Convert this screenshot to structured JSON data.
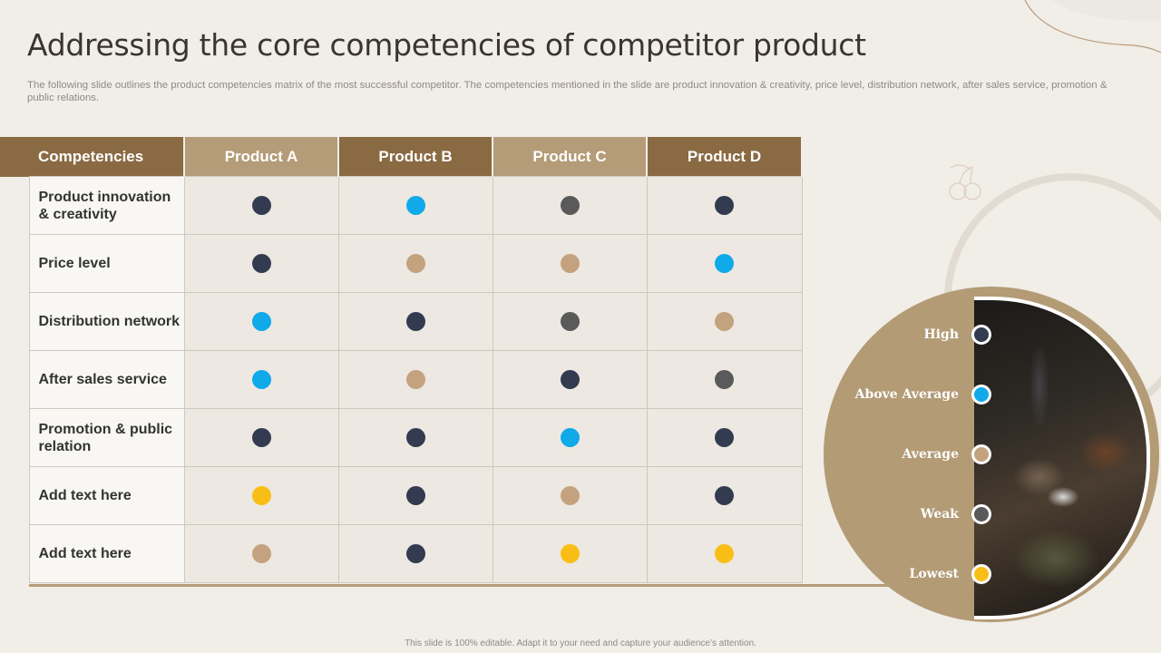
{
  "slide": {
    "title": "Addressing the core competencies of competitor product",
    "subtitle": "The following slide outlines the product competencies matrix of the most successful competitor. The competencies mentioned in the slide are product innovation & creativity,  price level, distribution network, after sales service, promotion & public relations.",
    "footer": "This slide is 100% editable.  Adapt it to your need and capture your audience’s attention."
  },
  "matrix": {
    "header": [
      "Competencies",
      "Product A",
      "Product B",
      "Product C",
      "Product D"
    ],
    "rows": [
      {
        "label": "Product innovation & creativity",
        "ratings": [
          "high",
          "above_average",
          "weak",
          "high"
        ]
      },
      {
        "label": "Price level",
        "ratings": [
          "high",
          "average",
          "average",
          "above_average"
        ]
      },
      {
        "label": "Distribution network",
        "ratings": [
          "above_average",
          "high",
          "weak",
          "average"
        ]
      },
      {
        "label": "After sales service",
        "ratings": [
          "above_average",
          "average",
          "high",
          "weak"
        ]
      },
      {
        "label": "Promotion & public relation",
        "ratings": [
          "high",
          "high",
          "above_average",
          "high"
        ]
      },
      {
        "label": "Add text here",
        "ratings": [
          "lowest",
          "high",
          "average",
          "high"
        ]
      },
      {
        "label": "Add text here",
        "ratings": [
          "average",
          "high",
          "lowest",
          "lowest"
        ]
      }
    ]
  },
  "legend": [
    {
      "key": "high",
      "label": "High",
      "color": "#323b4f"
    },
    {
      "key": "above_average",
      "label": "Above Average",
      "color": "#10a9ea"
    },
    {
      "key": "average",
      "label": "Average",
      "color": "#c4a27f"
    },
    {
      "key": "weak",
      "label": "Weak",
      "color": "#5a5a5a"
    },
    {
      "key": "lowest",
      "label": "Lowest",
      "color": "#f8be16"
    }
  ],
  "colors": {
    "header_dark": "#8a6a43",
    "header_light": "#b49c78",
    "background": "#f1ede7"
  }
}
